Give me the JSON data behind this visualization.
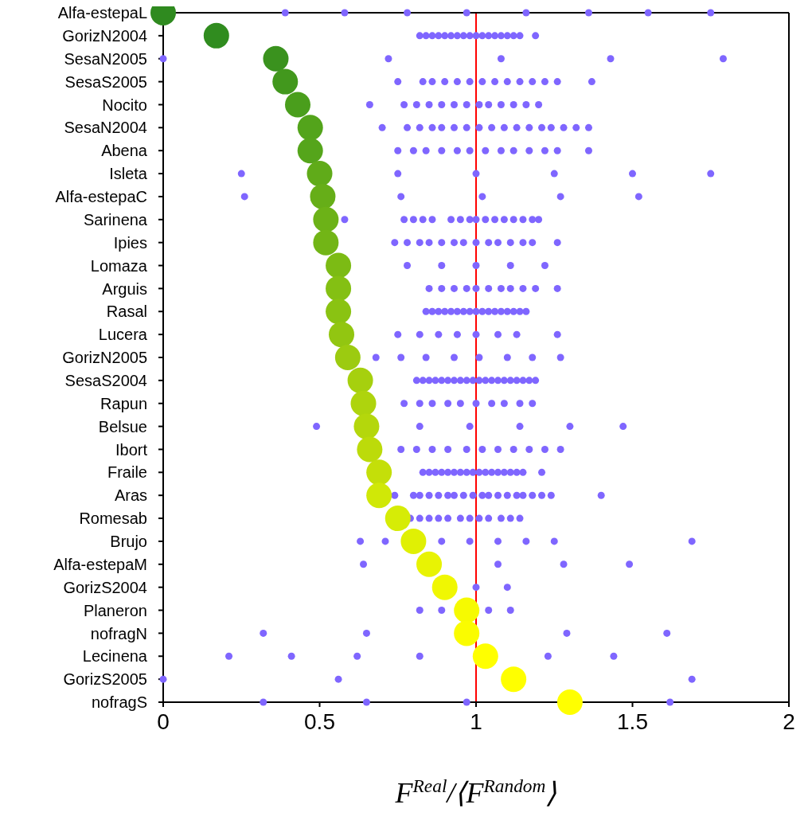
{
  "chart_data": {
    "type": "scatter",
    "orientation": "horizontal",
    "xlabel": "F$^{Real}$/⟨F$^{Random}$⟩",
    "categories": [
      "Alfa-estepaL",
      "GorizN2004",
      "SesaN2005",
      "SesaS2005",
      "Nocito",
      "SesaN2004",
      "Abena",
      "Isleta",
      "Alfa-estepaC",
      "Sarinena",
      "Ipies",
      "Lomaza",
      "Arguis",
      "Rasal",
      "Lucera",
      "GorizN2005",
      "SesaS2004",
      "Rapun",
      "Belsue",
      "Ibort",
      "Fraile",
      "Aras",
      "Romesab",
      "Brujo",
      "Alfa-estepaM",
      "GorizS2004",
      "Planeron",
      "nofragN",
      "Lecinena",
      "GorizS2005",
      "nofragS"
    ],
    "xlim": [
      0,
      2
    ],
    "xticks": [
      0,
      0.5,
      1,
      1.5,
      2
    ],
    "marker": "circle",
    "ref_lines": [
      {
        "axis": "x",
        "value": 1,
        "color": "#ff0000"
      }
    ],
    "series": [
      {
        "x": [
          "Alfa-estepaL",
          "Alfa-estepaL",
          "Alfa-estepaL",
          "Alfa-estepaL",
          "Alfa-estepaL",
          "Alfa-estepaL",
          "Alfa-estepaL",
          "Alfa-estepaL",
          "GorizN2004",
          "GorizN2004",
          "GorizN2004",
          "GorizN2004",
          "GorizN2004",
          "GorizN2004",
          "GorizN2004",
          "GorizN2004",
          "GorizN2004",
          "GorizN2004",
          "GorizN2004",
          "GorizN2004",
          "GorizN2004",
          "GorizN2004",
          "GorizN2004",
          "GorizN2004",
          "GorizN2004",
          "GorizN2004",
          "SesaN2005",
          "SesaN2005",
          "SesaN2005",
          "SesaN2005",
          "SesaN2005",
          "SesaS2005",
          "SesaS2005",
          "SesaS2005",
          "SesaS2005",
          "SesaS2005",
          "SesaS2005",
          "SesaS2005",
          "SesaS2005",
          "SesaS2005",
          "SesaS2005",
          "SesaS2005",
          "SesaS2005",
          "SesaS2005",
          "SesaS2005",
          "Nocito",
          "Nocito",
          "Nocito",
          "Nocito",
          "Nocito",
          "Nocito",
          "Nocito",
          "Nocito",
          "Nocito",
          "Nocito",
          "Nocito",
          "Nocito",
          "Nocito",
          "SesaN2004",
          "SesaN2004",
          "SesaN2004",
          "SesaN2004",
          "SesaN2004",
          "SesaN2004",
          "SesaN2004",
          "SesaN2004",
          "SesaN2004",
          "SesaN2004",
          "SesaN2004",
          "SesaN2004",
          "SesaN2004",
          "SesaN2004",
          "SesaN2004",
          "SesaN2004",
          "SesaN2004",
          "Abena",
          "Abena",
          "Abena",
          "Abena",
          "Abena",
          "Abena",
          "Abena",
          "Abena",
          "Abena",
          "Abena",
          "Abena",
          "Abena",
          "Abena",
          "Isleta",
          "Isleta",
          "Isleta",
          "Isleta",
          "Isleta",
          "Isleta",
          "Alfa-estepaC",
          "Alfa-estepaC",
          "Alfa-estepaC",
          "Alfa-estepaC",
          "Alfa-estepaC",
          "Sarinena",
          "Sarinena",
          "Sarinena",
          "Sarinena",
          "Sarinena",
          "Sarinena",
          "Sarinena",
          "Sarinena",
          "Sarinena",
          "Sarinena",
          "Sarinena",
          "Sarinena",
          "Sarinena",
          "Sarinena",
          "Sarinena",
          "Sarinena",
          "Ipies",
          "Ipies",
          "Ipies",
          "Ipies",
          "Ipies",
          "Ipies",
          "Ipies",
          "Ipies",
          "Ipies",
          "Ipies",
          "Ipies",
          "Ipies",
          "Ipies",
          "Ipies",
          "Lomaza",
          "Lomaza",
          "Lomaza",
          "Lomaza",
          "Lomaza",
          "Arguis",
          "Arguis",
          "Arguis",
          "Arguis",
          "Arguis",
          "Arguis",
          "Arguis",
          "Arguis",
          "Arguis",
          "Arguis",
          "Arguis",
          "Rasal",
          "Rasal",
          "Rasal",
          "Rasal",
          "Rasal",
          "Rasal",
          "Rasal",
          "Rasal",
          "Rasal",
          "Rasal",
          "Rasal",
          "Rasal",
          "Rasal",
          "Rasal",
          "Rasal",
          "Rasal",
          "Rasal",
          "Lucera",
          "Lucera",
          "Lucera",
          "Lucera",
          "Lucera",
          "Lucera",
          "Lucera",
          "Lucera",
          "GorizN2005",
          "GorizN2005",
          "GorizN2005",
          "GorizN2005",
          "GorizN2005",
          "GorizN2005",
          "GorizN2005",
          "GorizN2005",
          "SesaS2004",
          "SesaS2004",
          "SesaS2004",
          "SesaS2004",
          "SesaS2004",
          "SesaS2004",
          "SesaS2004",
          "SesaS2004",
          "SesaS2004",
          "SesaS2004",
          "SesaS2004",
          "SesaS2004",
          "SesaS2004",
          "SesaS2004",
          "SesaS2004",
          "SesaS2004",
          "SesaS2004",
          "SesaS2004",
          "SesaS2004",
          "SesaS2004",
          "Rapun",
          "Rapun",
          "Rapun",
          "Rapun",
          "Rapun",
          "Rapun",
          "Rapun",
          "Rapun",
          "Rapun",
          "Rapun",
          "Belsue",
          "Belsue",
          "Belsue",
          "Belsue",
          "Belsue",
          "Belsue",
          "Ibort",
          "Ibort",
          "Ibort",
          "Ibort",
          "Ibort",
          "Ibort",
          "Ibort",
          "Ibort",
          "Ibort",
          "Ibort",
          "Ibort",
          "Fraile",
          "Fraile",
          "Fraile",
          "Fraile",
          "Fraile",
          "Fraile",
          "Fraile",
          "Fraile",
          "Fraile",
          "Fraile",
          "Fraile",
          "Fraile",
          "Fraile",
          "Fraile",
          "Fraile",
          "Fraile",
          "Fraile",
          "Fraile",
          "Aras",
          "Aras",
          "Aras",
          "Aras",
          "Aras",
          "Aras",
          "Aras",
          "Aras",
          "Aras",
          "Aras",
          "Aras",
          "Aras",
          "Aras",
          "Aras",
          "Aras",
          "Aras",
          "Aras",
          "Aras",
          "Aras",
          "Romesab",
          "Romesab",
          "Romesab",
          "Romesab",
          "Romesab",
          "Romesab",
          "Romesab",
          "Romesab",
          "Romesab",
          "Romesab",
          "Romesab",
          "Romesab",
          "Brujo",
          "Brujo",
          "Brujo",
          "Brujo",
          "Brujo",
          "Brujo",
          "Brujo",
          "Brujo",
          "Alfa-estepaM",
          "Alfa-estepaM",
          "Alfa-estepaM",
          "Alfa-estepaM",
          "GorizS2004",
          "GorizS2004",
          "Planeron",
          "Planeron",
          "Planeron",
          "Planeron",
          "nofragN",
          "nofragN",
          "nofragN",
          "nofragN",
          "Lecinena",
          "Lecinena",
          "Lecinena",
          "Lecinena",
          "Lecinena",
          "Lecinena",
          "GorizS2005",
          "GorizS2005",
          "GorizS2005",
          "nofragS",
          "nofragS",
          "nofragS",
          "nofragS"
        ],
        "values": [
          0.39,
          0.58,
          0.78,
          0.97,
          1.16,
          1.36,
          1.55,
          1.75,
          0.82,
          0.84,
          0.86,
          0.88,
          0.9,
          0.92,
          0.94,
          0.96,
          0.98,
          1.0,
          1.02,
          1.04,
          1.06,
          1.08,
          1.1,
          1.12,
          1.14,
          1.19,
          0,
          0.72,
          1.08,
          1.43,
          1.79,
          0.75,
          0.83,
          0.86,
          0.9,
          0.94,
          0.98,
          1.02,
          1.06,
          1.1,
          1.14,
          1.18,
          1.22,
          1.26,
          1.37,
          0.66,
          0.77,
          0.81,
          0.85,
          0.89,
          0.93,
          0.97,
          1.01,
          1.04,
          1.08,
          1.12,
          1.16,
          1.2,
          0.7,
          0.78,
          0.82,
          0.86,
          0.89,
          0.93,
          0.97,
          1.01,
          1.05,
          1.09,
          1.13,
          1.17,
          1.21,
          1.24,
          1.28,
          1.32,
          1.36,
          0.75,
          0.8,
          0.84,
          0.89,
          0.94,
          0.98,
          1.03,
          1.08,
          1.12,
          1.17,
          1.22,
          1.26,
          1.36,
          0.25,
          0.75,
          1.0,
          1.25,
          1.5,
          1.75,
          0.26,
          0.76,
          1.02,
          1.27,
          1.52,
          0.58,
          0.77,
          0.8,
          0.83,
          0.86,
          0.92,
          0.95,
          0.98,
          1.0,
          1.03,
          1.06,
          1.09,
          1.12,
          1.15,
          1.18,
          1.2,
          0.74,
          0.78,
          0.82,
          0.85,
          0.89,
          0.93,
          0.96,
          1.0,
          1.04,
          1.07,
          1.11,
          1.15,
          1.18,
          1.26,
          0.78,
          0.89,
          1.0,
          1.11,
          1.22,
          0.85,
          0.89,
          0.93,
          0.97,
          1.0,
          1.04,
          1.08,
          1.11,
          1.15,
          1.19,
          1.26,
          0.84,
          0.86,
          0.88,
          0.9,
          0.92,
          0.94,
          0.96,
          0.98,
          1.0,
          1.02,
          1.04,
          1.06,
          1.08,
          1.1,
          1.12,
          1.14,
          1.16,
          0.75,
          0.82,
          0.88,
          0.94,
          1.0,
          1.07,
          1.13,
          1.26,
          0.68,
          0.76,
          0.84,
          0.93,
          1.01,
          1.1,
          1.18,
          1.27,
          0.81,
          0.83,
          0.85,
          0.87,
          0.89,
          0.91,
          0.93,
          0.95,
          0.97,
          0.99,
          1.01,
          1.03,
          1.05,
          1.07,
          1.09,
          1.11,
          1.13,
          1.15,
          1.17,
          1.19,
          0.77,
          0.82,
          0.86,
          0.91,
          0.95,
          1.0,
          1.05,
          1.09,
          1.14,
          1.18,
          0.49,
          0.82,
          0.98,
          1.14,
          1.3,
          1.47,
          0.76,
          0.81,
          0.86,
          0.91,
          0.97,
          1.02,
          1.07,
          1.12,
          1.17,
          1.22,
          1.27,
          0.83,
          0.85,
          0.87,
          0.89,
          0.91,
          0.93,
          0.95,
          0.97,
          0.99,
          1.01,
          1.03,
          1.05,
          1.07,
          1.09,
          1.11,
          1.13,
          1.15,
          1.21,
          0.74,
          0.8,
          0.82,
          0.85,
          0.88,
          0.91,
          0.93,
          0.96,
          0.99,
          1.02,
          1.04,
          1.07,
          1.1,
          1.13,
          1.15,
          1.18,
          1.21,
          1.24,
          1.4,
          0.79,
          0.82,
          0.85,
          0.88,
          0.91,
          0.95,
          0.98,
          1.01,
          1.04,
          1.08,
          1.11,
          1.14,
          0.63,
          0.71,
          0.89,
          0.98,
          1.07,
          1.16,
          1.25,
          1.69,
          0.64,
          1.07,
          1.28,
          1.49,
          1.0,
          1.1,
          0.82,
          0.89,
          1.04,
          1.11,
          0.32,
          0.65,
          1.29,
          1.61,
          0.21,
          0.41,
          0.62,
          0.82,
          1.23,
          1.44,
          0,
          0.56,
          1.69,
          0.32,
          0.65,
          0.97,
          1.62
        ],
        "color": "#7f66ff"
      },
      {
        "values": [
          0,
          0.17,
          0.36,
          0.39,
          0.43,
          0.47,
          0.47,
          0.5,
          0.51,
          0.52,
          0.52,
          0.56,
          0.56,
          0.56,
          0.57,
          0.59,
          0.63,
          0.64,
          0.65,
          0.66,
          0.69,
          0.69,
          0.75,
          0.8,
          0.85,
          0.9,
          0.97,
          0.97,
          1.03,
          1.12,
          1.3
        ],
        "colors": [
          "#2f8a1f",
          "#308c1f",
          "#3a921e",
          "#42981d",
          "#4a9e1c",
          "#53a41b",
          "#55a51b",
          "#60ab19",
          "#66ae18",
          "#6cb217",
          "#72b516",
          "#7cbb14",
          "#84c013",
          "#8ac312",
          "#92c611",
          "#9ccb10",
          "#a6d00e",
          "#aed40d",
          "#b4d70c",
          "#bcdb0a",
          "#c4df09",
          "#d0e807",
          "#d6ec06",
          "#e0f004",
          "#e8f303",
          "#f0f702",
          "#f6fa01",
          "#fafc00",
          "#ffff00",
          "#ffff00",
          "#ffff00"
        ]
      }
    ]
  }
}
